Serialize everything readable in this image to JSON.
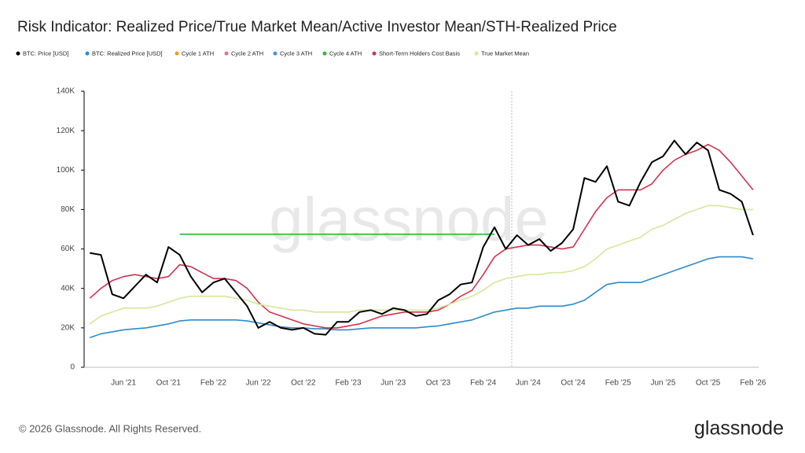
{
  "chart_data": {
    "type": "line",
    "title": "Risk Indicator: Realized Price/True Market Mean/Active Investor Mean/STH-Realized Price",
    "categories": [
      null,
      null,
      null,
      "Jun '21",
      null,
      null,
      null,
      "Oct '21",
      null,
      null,
      null,
      "Feb '22",
      null,
      null,
      null,
      "Jun '22",
      null,
      null,
      null,
      "Oct '22",
      null,
      null,
      null,
      "Feb '23",
      null,
      null,
      null,
      "Jun '23",
      null,
      null,
      null,
      "Oct '23",
      null,
      null,
      null,
      "Feb '24",
      null,
      null,
      null,
      "Jun '24",
      null,
      null,
      null,
      "Oct '24",
      null,
      null,
      null,
      "Feb '25",
      null,
      null,
      null,
      "Jun '25",
      null,
      null,
      null,
      "Oct '25",
      null,
      null,
      null,
      "Feb '26"
    ],
    "ylim": [
      0,
      140000
    ],
    "yticks": [
      0,
      {
        "value": 20000,
        "label": "20K"
      },
      {
        "value": 40000,
        "label": "40K"
      },
      {
        "value": 60000,
        "label": "60K"
      },
      {
        "value": 80000,
        "label": "80K"
      },
      {
        "value": 100000,
        "label": "100K"
      },
      {
        "value": 120000,
        "label": "120K"
      },
      {
        "value": 140000,
        "label": "140K"
      }
    ],
    "grid": false,
    "legend": "top",
    "series": [
      {
        "name": "BTC: Price [USD]",
        "color": "#000000",
        "values": [
          58000,
          57000,
          37000,
          35000,
          41000,
          47000,
          43000,
          61000,
          57000,
          46000,
          38000,
          43000,
          45000,
          38000,
          31000,
          20000,
          23000,
          20000,
          19000,
          20000,
          17000,
          16500,
          23000,
          23000,
          28000,
          29000,
          27000,
          30000,
          29000,
          26000,
          27000,
          34000,
          37000,
          42000,
          43000,
          61000,
          71000,
          60000,
          67000,
          62000,
          65000,
          59000,
          63000,
          70000,
          96000,
          94000,
          102000,
          84000,
          82000,
          94000,
          104000,
          107000,
          115000,
          108000,
          114000,
          110000,
          90000,
          88000,
          84000,
          67000
        ]
      },
      {
        "name": "BTC: Realized Price [USD]",
        "color": "#2e8bc9",
        "values": [
          15000,
          17000,
          18000,
          19000,
          19500,
          20000,
          21000,
          22000,
          23500,
          24000,
          24000,
          24000,
          24000,
          24000,
          23500,
          22500,
          21500,
          20500,
          20000,
          20000,
          19500,
          19500,
          19000,
          19000,
          19500,
          20000,
          20000,
          20000,
          20000,
          20000,
          20500,
          21000,
          22000,
          23000,
          24000,
          26000,
          28000,
          29000,
          30000,
          30000,
          31000,
          31000,
          31000,
          32000,
          34000,
          38000,
          42000,
          43000,
          43000,
          43000,
          45000,
          47000,
          49000,
          51000,
          53000,
          55000,
          56000,
          56000,
          56000,
          55000
        ]
      },
      {
        "name": "Cycle 1 ATH",
        "color": "#f39c12",
        "values": [
          null,
          null,
          null,
          null,
          null,
          null,
          null,
          null,
          null,
          null,
          null,
          null,
          null,
          null,
          null,
          null,
          null,
          null,
          null,
          null,
          null,
          null,
          null,
          null,
          null,
          null,
          null,
          null,
          null,
          null,
          null,
          null,
          null,
          null,
          null,
          null,
          null,
          null,
          null,
          null,
          null,
          null,
          null,
          null,
          null,
          null,
          null,
          null,
          null,
          null,
          null,
          null,
          null,
          null,
          null,
          null,
          null,
          null,
          null,
          null
        ]
      },
      {
        "name": "Cycle 2 ATH",
        "color": "#e8708a",
        "values": [
          null,
          null,
          null,
          null,
          null,
          null,
          null,
          null,
          null,
          null,
          null,
          null,
          null,
          null,
          null,
          null,
          null,
          null,
          null,
          null,
          null,
          null,
          null,
          null,
          null,
          null,
          null,
          null,
          null,
          null,
          null,
          null,
          null,
          null,
          null,
          null,
          null,
          null,
          null,
          null,
          null,
          null,
          null,
          null,
          null,
          null,
          null,
          null,
          null,
          null,
          null,
          null,
          null,
          null,
          null,
          null,
          null,
          null,
          null,
          null
        ]
      },
      {
        "name": "Cycle 3 ATH",
        "color": "#4a90d9",
        "values": [
          null,
          null,
          null,
          null,
          null,
          null,
          null,
          null,
          null,
          null,
          null,
          null,
          null,
          null,
          null,
          null,
          null,
          null,
          null,
          null,
          null,
          null,
          null,
          null,
          null,
          null,
          null,
          null,
          null,
          null,
          null,
          null,
          null,
          null,
          null,
          null,
          null,
          null,
          null,
          null,
          null,
          null,
          null,
          null,
          null,
          null,
          null,
          null,
          null,
          null,
          null,
          null,
          null,
          null,
          null,
          null,
          null,
          null,
          null,
          null
        ]
      },
      {
        "name": "Cycle 4 ATH",
        "color": "#2eb82e",
        "values": [
          null,
          null,
          null,
          null,
          null,
          null,
          null,
          null,
          67500,
          67500,
          67500,
          67500,
          67500,
          67500,
          67500,
          67500,
          67500,
          67500,
          67500,
          67500,
          67500,
          67500,
          67500,
          67500,
          67500,
          67500,
          67500,
          67500,
          67500,
          67500,
          67500,
          67500,
          67500,
          67500,
          67500,
          67500,
          67500,
          null,
          null,
          null,
          null,
          null,
          null,
          null,
          null,
          null,
          null,
          null,
          null,
          null,
          null,
          null,
          null,
          null,
          null,
          null,
          null,
          null,
          null,
          null
        ]
      },
      {
        "name": "Short-Term Holders Cost Basis",
        "color": "#d6304f",
        "values": [
          35000,
          40000,
          44000,
          46000,
          47000,
          46000,
          45000,
          46000,
          52000,
          51000,
          48000,
          45000,
          45000,
          44000,
          40000,
          33000,
          28000,
          26000,
          24000,
          22000,
          21000,
          20000,
          20000,
          21000,
          22000,
          24000,
          26000,
          27000,
          28000,
          28000,
          28000,
          29000,
          32000,
          36000,
          39000,
          47000,
          56000,
          60000,
          61000,
          62000,
          62000,
          61000,
          60000,
          61000,
          70000,
          79000,
          86000,
          90000,
          90000,
          90000,
          93000,
          100000,
          105000,
          108000,
          110000,
          113000,
          110000,
          104000,
          97000,
          90000
        ]
      },
      {
        "name": "True Market Mean",
        "color": "#d4e89a",
        "values": [
          22000,
          26000,
          28000,
          30000,
          30000,
          30000,
          31000,
          33000,
          35000,
          36000,
          36000,
          36000,
          36000,
          35000,
          34000,
          32000,
          31000,
          30000,
          29000,
          29000,
          28000,
          28000,
          28000,
          28000,
          29000,
          29000,
          29000,
          29000,
          29000,
          29000,
          29000,
          30000,
          32000,
          34000,
          36000,
          39000,
          43000,
          45000,
          46000,
          47000,
          47000,
          48000,
          48000,
          49000,
          51000,
          55000,
          60000,
          62000,
          64000,
          66000,
          70000,
          72000,
          75000,
          78000,
          80000,
          82000,
          82000,
          81000,
          80000,
          80000
        ]
      }
    ]
  },
  "footer": {
    "copyright": "© 2026 Glassnode. All Rights Reserved.",
    "logo": "glassnode"
  },
  "watermark": "glassnode"
}
